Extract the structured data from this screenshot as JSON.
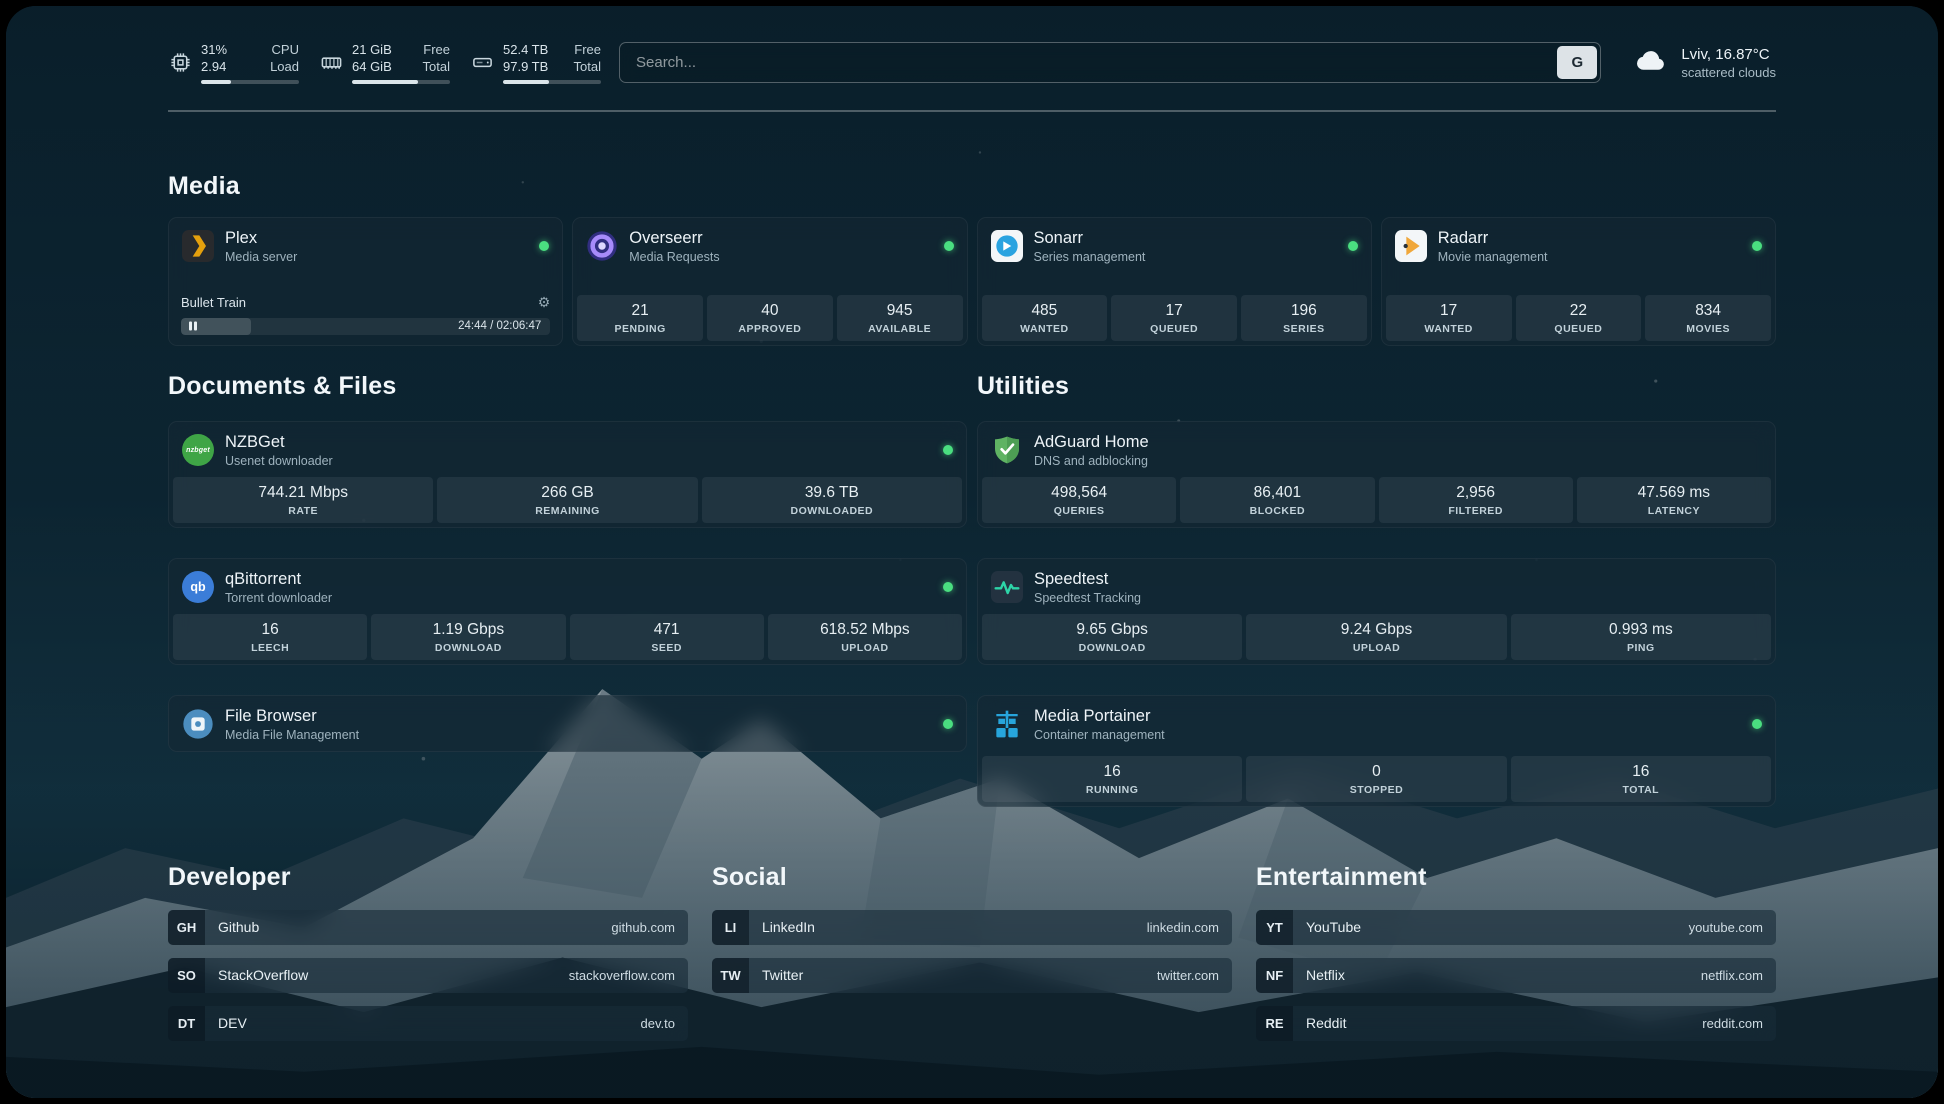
{
  "header": {
    "resources": [
      {
        "icon": "cpu-icon",
        "rows": [
          {
            "value": "31%",
            "label": "CPU"
          },
          {
            "value": "2.94",
            "label": "Load"
          }
        ],
        "progress": 31
      },
      {
        "icon": "memory-icon",
        "rows": [
          {
            "value": "21 GiB",
            "label": "Free"
          },
          {
            "value": "64 GiB",
            "label": "Total"
          }
        ],
        "progress": 67
      },
      {
        "icon": "disk-icon",
        "rows": [
          {
            "value": "52.4 TB",
            "label": "Free"
          },
          {
            "value": "97.9 TB",
            "label": "Total"
          }
        ],
        "progress": 47
      }
    ],
    "search": {
      "placeholder": "Search...",
      "provider": "G"
    },
    "weather": {
      "icon": "cloud-icon",
      "location": "Lviv, 16.87°C",
      "condition": "scattered clouds"
    }
  },
  "sections": {
    "media": {
      "title": "Media",
      "cards": [
        {
          "icon": "plex-icon",
          "name": "Plex",
          "description": "Media server",
          "online": true,
          "player": {
            "title": "Bullet Train",
            "time": "24:44 / 02:06:47",
            "progress": 19
          }
        },
        {
          "icon": "overseerr-icon",
          "name": "Overseerr",
          "description": "Media Requests",
          "online": true,
          "stats": [
            {
              "value": "21",
              "label": "PENDING"
            },
            {
              "value": "40",
              "label": "APPROVED"
            },
            {
              "value": "945",
              "label": "AVAILABLE"
            }
          ]
        },
        {
          "icon": "sonarr-icon",
          "name": "Sonarr",
          "description": "Series management",
          "online": true,
          "stats": [
            {
              "value": "485",
              "label": "WANTED"
            },
            {
              "value": "17",
              "label": "QUEUED"
            },
            {
              "value": "196",
              "label": "SERIES"
            }
          ]
        },
        {
          "icon": "radarr-icon",
          "name": "Radarr",
          "description": "Movie management",
          "online": true,
          "stats": [
            {
              "value": "17",
              "label": "WANTED"
            },
            {
              "value": "22",
              "label": "QUEUED"
            },
            {
              "value": "834",
              "label": "MOVIES"
            }
          ]
        }
      ]
    },
    "documents": {
      "title": "Documents & Files",
      "cards": [
        {
          "icon": "nzbget-icon",
          "icon_text": "nzbget",
          "name": "NZBGet",
          "description": "Usenet downloader",
          "online": true,
          "stats": [
            {
              "value": "744.21 Mbps",
              "label": "RATE"
            },
            {
              "value": "266 GB",
              "label": "REMAINING"
            },
            {
              "value": "39.6 TB",
              "label": "DOWNLOADED"
            }
          ]
        },
        {
          "icon": "qbittorrent-icon",
          "icon_text": "qb",
          "name": "qBittorrent",
          "description": "Torrent downloader",
          "online": true,
          "stats": [
            {
              "value": "16",
              "label": "LEECH"
            },
            {
              "value": "1.19 Gbps",
              "label": "DOWNLOAD"
            },
            {
              "value": "471",
              "label": "SEED"
            },
            {
              "value": "618.52 Mbps",
              "label": "UPLOAD"
            }
          ]
        },
        {
          "icon": "filebrowser-icon",
          "name": "File Browser",
          "description": "Media File Management",
          "online": true
        }
      ]
    },
    "utilities": {
      "title": "Utilities",
      "cards": [
        {
          "icon": "adguard-icon",
          "name": "AdGuard Home",
          "description": "DNS and adblocking",
          "online": false,
          "stats": [
            {
              "value": "498,564",
              "label": "QUERIES"
            },
            {
              "value": "86,401",
              "label": "BLOCKED"
            },
            {
              "value": "2,956",
              "label": "FILTERED"
            },
            {
              "value": "47.569 ms",
              "label": "LATENCY"
            }
          ]
        },
        {
          "icon": "speedtest-icon",
          "name": "Speedtest",
          "description": "Speedtest Tracking",
          "online": false,
          "stats": [
            {
              "value": "9.65 Gbps",
              "label": "DOWNLOAD"
            },
            {
              "value": "9.24 Gbps",
              "label": "UPLOAD"
            },
            {
              "value": "0.993 ms",
              "label": "PING"
            }
          ]
        },
        {
          "icon": "portainer-icon",
          "name": "Media Portainer",
          "description": "Container management",
          "online": true,
          "stats": [
            {
              "value": "16",
              "label": "RUNNING"
            },
            {
              "value": "0",
              "label": "STOPPED"
            },
            {
              "value": "16",
              "label": "TOTAL"
            }
          ]
        }
      ]
    }
  },
  "bookmarks": [
    {
      "title": "Developer",
      "items": [
        {
          "abbr": "GH",
          "name": "Github",
          "url": "github.com"
        },
        {
          "abbr": "SO",
          "name": "StackOverflow",
          "url": "stackoverflow.com"
        },
        {
          "abbr": "DT",
          "name": "DEV",
          "url": "dev.to"
        }
      ]
    },
    {
      "title": "Social",
      "items": [
        {
          "abbr": "LI",
          "name": "LinkedIn",
          "url": "linkedin.com"
        },
        {
          "abbr": "TW",
          "name": "Twitter",
          "url": "twitter.com"
        }
      ]
    },
    {
      "title": "Entertainment",
      "items": [
        {
          "abbr": "YT",
          "name": "YouTube",
          "url": "youtube.com"
        },
        {
          "abbr": "NF",
          "name": "Netflix",
          "url": "netflix.com"
        },
        {
          "abbr": "RE",
          "name": "Reddit",
          "url": "reddit.com"
        }
      ]
    }
  ],
  "colors": {
    "status_online": "#4ade80",
    "plex_amber": "#e5a00d",
    "background_teal": "#0c2230"
  }
}
